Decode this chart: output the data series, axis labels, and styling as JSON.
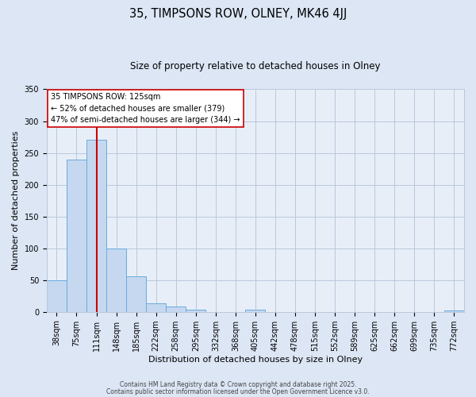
{
  "title": "35, TIMPSONS ROW, OLNEY, MK46 4JJ",
  "subtitle": "Size of property relative to detached houses in Olney",
  "xlabel": "Distribution of detached houses by size in Olney",
  "ylabel": "Number of detached properties",
  "bar_labels": [
    "38sqm",
    "75sqm",
    "111sqm",
    "148sqm",
    "185sqm",
    "222sqm",
    "258sqm",
    "295sqm",
    "332sqm",
    "368sqm",
    "405sqm",
    "442sqm",
    "478sqm",
    "515sqm",
    "552sqm",
    "589sqm",
    "625sqm",
    "662sqm",
    "699sqm",
    "735sqm",
    "772sqm"
  ],
  "bar_values": [
    50,
    239,
    271,
    100,
    56,
    14,
    9,
    3,
    0,
    0,
    4,
    0,
    0,
    0,
    0,
    0,
    0,
    0,
    0,
    0,
    2
  ],
  "bar_color": "#c5d8f0",
  "bar_edgecolor": "#6aaade",
  "background_color": "#dce6f5",
  "plot_background": "#e8eef8",
  "grid_color": "#b8c8dc",
  "vline_x": 2.0,
  "vline_color": "#cc0000",
  "ylim": [
    0,
    350
  ],
  "yticks": [
    0,
    50,
    100,
    150,
    200,
    250,
    300,
    350
  ],
  "annotation_text": "35 TIMPSONS ROW: 125sqm\n← 52% of detached houses are smaller (379)\n47% of semi-detached houses are larger (344) →",
  "footer_line1": "Contains HM Land Registry data © Crown copyright and database right 2025.",
  "footer_line2": "Contains public sector information licensed under the Open Government Licence v3.0.",
  "title_fontsize": 10.5,
  "subtitle_fontsize": 8.5,
  "xlabel_fontsize": 8,
  "ylabel_fontsize": 8,
  "tick_fontsize": 7,
  "annotation_fontsize": 7,
  "footer_fontsize": 5.5
}
